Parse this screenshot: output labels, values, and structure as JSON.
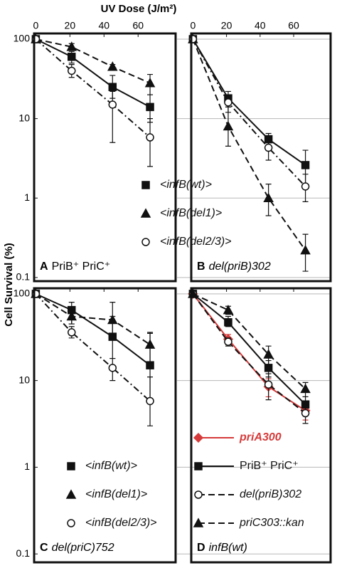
{
  "title": "UV Dose (J/m²)",
  "ylabel": "Cell Survival (%)",
  "chart_data": [
    {
      "type": "line",
      "label": "A",
      "title": "PriB⁺ PriC⁺",
      "log_y": true,
      "xlim": [
        -1,
        82
      ],
      "ylim": [
        0.09,
        118
      ],
      "xticks": [
        0,
        20,
        40,
        60
      ],
      "show_xtick_labels": true,
      "yticks": [
        100,
        10,
        1,
        0.1
      ],
      "show_ytick_labels": true,
      "grid": false,
      "legend": "lower right",
      "legend_lines": false,
      "x": [
        0,
        21,
        45,
        67
      ],
      "series": [
        {
          "name": "<infB(wt)>",
          "color": "#111111",
          "marker": "square",
          "dash": "solid",
          "italic": true,
          "values": [
            100,
            60,
            25,
            14
          ],
          "err_low": [
            null,
            50,
            18,
            9
          ],
          "err_high": [
            null,
            70,
            35,
            20
          ]
        },
        {
          "name": "<infB(del1)>",
          "color": "#111111",
          "marker": "triangle",
          "dash": "dash",
          "italic": true,
          "values": [
            100,
            80,
            45,
            28
          ],
          "err_low": [
            null,
            72,
            42,
            20
          ],
          "err_high": [
            null,
            88,
            48,
            36
          ]
        },
        {
          "name": "<infB(del2/3)>",
          "color": "#111111",
          "marker": "circle",
          "dash": "dashdot",
          "italic": true,
          "values": [
            100,
            40,
            15,
            5.8
          ],
          "err_low": [
            null,
            33,
            5,
            2.5
          ],
          "err_high": [
            null,
            48,
            22,
            10
          ]
        }
      ]
    },
    {
      "type": "line",
      "label": "B",
      "title": "del(priB)302",
      "log_y": true,
      "xlim": [
        -1,
        82
      ],
      "ylim": [
        0.09,
        118
      ],
      "xticks": [
        0,
        20,
        40,
        60
      ],
      "show_xtick_labels": true,
      "yticks": [
        100,
        10,
        1,
        0.1
      ],
      "show_ytick_labels": false,
      "grid": true,
      "x": [
        0,
        21,
        45,
        67
      ],
      "series": [
        {
          "color": "#111111",
          "marker": "square",
          "dash": "solid",
          "values": [
            100,
            18,
            5.5,
            2.6
          ],
          "err_low": [
            null,
            14,
            4.5,
            1.5
          ],
          "err_high": [
            null,
            22,
            6.5,
            4
          ]
        },
        {
          "color": "#111111",
          "marker": "triangle",
          "dash": "dash",
          "values": [
            100,
            8,
            1.0,
            0.22
          ],
          "err_low": [
            null,
            4.5,
            0.6,
            0.12
          ],
          "err_high": [
            null,
            14,
            1.5,
            0.35
          ]
        },
        {
          "color": "#111111",
          "marker": "circle",
          "dash": "dashdot",
          "values": [
            100,
            16,
            4.3,
            1.4
          ],
          "err_low": [
            null,
            12,
            3,
            0.9
          ],
          "err_high": [
            null,
            20,
            5.5,
            2
          ]
        }
      ]
    },
    {
      "type": "line",
      "label": "C",
      "title": "del(priC)752",
      "log_y": true,
      "xlim": [
        -1,
        82
      ],
      "ylim": [
        0.08,
        116
      ],
      "xticks": [
        0,
        20,
        40,
        60
      ],
      "show_xtick_labels": false,
      "yticks": [
        100,
        10,
        1,
        0.1
      ],
      "show_ytick_labels": true,
      "grid": false,
      "legend": "lower left",
      "legend_lines": false,
      "x": [
        0,
        21,
        45,
        67
      ],
      "series": [
        {
          "name": "<infB(wt)>",
          "color": "#111111",
          "marker": "square",
          "dash": "solid",
          "italic": true,
          "values": [
            100,
            65,
            32,
            15
          ],
          "err_low": [
            null,
            45,
            18,
            6
          ],
          "err_high": [
            null,
            80,
            55,
            35
          ]
        },
        {
          "name": "<infB(del1)>",
          "color": "#111111",
          "marker": "triangle",
          "dash": "dash",
          "italic": true,
          "values": [
            100,
            55,
            50,
            26
          ],
          "err_low": [
            null,
            45,
            30,
            16
          ],
          "err_high": [
            null,
            65,
            80,
            36
          ]
        },
        {
          "name": "<infB(del2/3)>",
          "color": "#111111",
          "marker": "circle",
          "dash": "dashdot",
          "italic": true,
          "values": [
            100,
            36,
            14,
            5.8
          ],
          "err_low": [
            null,
            31,
            10,
            3
          ],
          "err_high": [
            null,
            42,
            18,
            11
          ]
        }
      ]
    },
    {
      "type": "line",
      "label": "D",
      "title": "infB(wt)",
      "log_y": true,
      "xlim": [
        -1,
        82
      ],
      "ylim": [
        0.08,
        116
      ],
      "xticks": [
        0,
        20,
        40,
        60
      ],
      "show_xtick_labels": false,
      "yticks": [
        100,
        10,
        1,
        0.1
      ],
      "show_ytick_labels": false,
      "grid": true,
      "legend": "lower left",
      "legend_lines": true,
      "x": [
        0,
        21,
        45,
        67
      ],
      "series": [
        {
          "name": "priA300",
          "color": "#d63a3a",
          "marker": "diamond",
          "dash": "solid",
          "italic": true,
          "values": [
            100,
            30,
            8.5,
            4.5
          ],
          "err_low": [
            null,
            26,
            6.5,
            3.5
          ],
          "err_high": [
            null,
            34,
            10.5,
            5.5
          ]
        },
        {
          "name": "PriB⁺ PriC⁺",
          "color": "#111111",
          "marker": "square",
          "dash": "solid",
          "italic": false,
          "values": [
            100,
            47,
            14,
            5.3
          ],
          "err_low": [
            null,
            42,
            11,
            4.2
          ],
          "err_high": [
            null,
            55,
            17,
            6.5
          ]
        },
        {
          "name": "del(priB)302",
          "color": "#111111",
          "marker": "circle",
          "dash": "dash",
          "italic": true,
          "values": [
            100,
            28,
            9,
            4.2
          ],
          "err_low": [
            null,
            25,
            6,
            3.2
          ],
          "err_high": [
            null,
            31,
            12,
            5.2
          ]
        },
        {
          "name": "priC303::kan",
          "color": "#111111",
          "marker": "triangle",
          "dash": "dash",
          "italic": true,
          "values": [
            100,
            65,
            20,
            8
          ],
          "err_low": [
            null,
            58,
            15,
            6.5
          ],
          "err_high": [
            null,
            72,
            25,
            9.5
          ]
        }
      ]
    }
  ]
}
